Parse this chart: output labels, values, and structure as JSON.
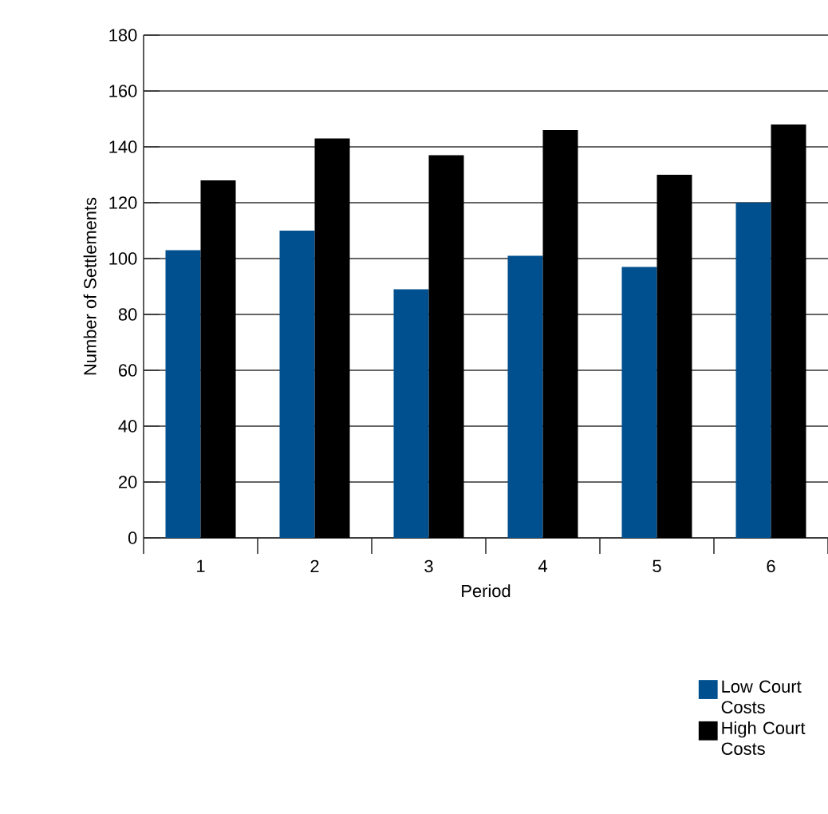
{
  "chart_data": {
    "type": "bar",
    "xlabel": "Period",
    "ylabel": "Number of Settlements",
    "categories": [
      "1",
      "2",
      "3",
      "4",
      "5",
      "6"
    ],
    "series": [
      {
        "name": "Low Court Costs",
        "color": "#00508f",
        "values": [
          103,
          110,
          89,
          101,
          97,
          120
        ]
      },
      {
        "name": "High Court Costs",
        "color": "#000000",
        "values": [
          128,
          143,
          137,
          146,
          130,
          148
        ]
      }
    ],
    "ylim": [
      0,
      180
    ],
    "yticks": [
      0,
      20,
      40,
      60,
      80,
      100,
      120,
      140,
      160,
      180
    ],
    "grid": "y",
    "legend": "bottom right"
  }
}
